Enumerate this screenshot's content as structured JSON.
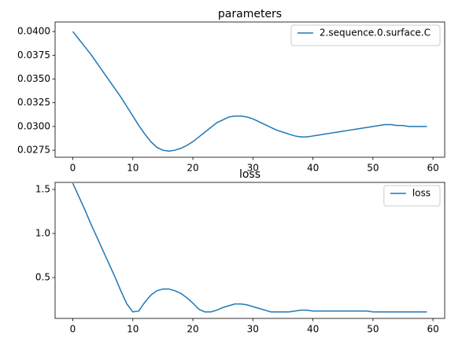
{
  "chart_data": [
    {
      "type": "line",
      "title": "parameters",
      "x": [
        0,
        1,
        2,
        3,
        4,
        5,
        6,
        7,
        8,
        9,
        10,
        11,
        12,
        13,
        14,
        15,
        16,
        17,
        18,
        19,
        20,
        21,
        22,
        23,
        24,
        25,
        26,
        27,
        28,
        29,
        30,
        31,
        32,
        33,
        34,
        35,
        36,
        37,
        38,
        39,
        40,
        41,
        42,
        43,
        44,
        45,
        46,
        47,
        48,
        49,
        50,
        51,
        52,
        53,
        54,
        55,
        56,
        57,
        58,
        59
      ],
      "series": [
        {
          "name": "2.sequence.0.surface.C",
          "color": "#1f77b4",
          "values": [
            0.04,
            0.0392,
            0.0384,
            0.0376,
            0.0367,
            0.0358,
            0.0349,
            0.034,
            0.0331,
            0.0321,
            0.0311,
            0.0301,
            0.0292,
            0.0284,
            0.0278,
            0.0275,
            0.0274,
            0.0275,
            0.0277,
            0.028,
            0.0284,
            0.0289,
            0.0294,
            0.0299,
            0.0304,
            0.0307,
            0.031,
            0.0311,
            0.0311,
            0.031,
            0.0308,
            0.0305,
            0.0302,
            0.0299,
            0.0296,
            0.0294,
            0.0292,
            0.029,
            0.0289,
            0.0289,
            0.029,
            0.0291,
            0.0292,
            0.0293,
            0.0294,
            0.0295,
            0.0296,
            0.0297,
            0.0298,
            0.0299,
            0.03,
            0.0301,
            0.0302,
            0.0302,
            0.0301,
            0.0301,
            0.03,
            0.03,
            0.03,
            0.03
          ]
        }
      ],
      "xlim": [
        -2.95,
        61.95
      ],
      "xticks": [
        0,
        10,
        20,
        30,
        40,
        50,
        60
      ],
      "ylim": [
        0.02676,
        0.041
      ],
      "yticks": [
        0.0275,
        {
          "value": 0.03,
          "label": "0.0300"
        },
        0.0325,
        {
          "value": 0.035,
          "label": "0.0350"
        },
        0.0375,
        {
          "value": 0.04,
          "label": "0.0400"
        }
      ],
      "legend": "upper right"
    },
    {
      "type": "line",
      "title": "loss",
      "x": [
        0,
        1,
        2,
        3,
        4,
        5,
        6,
        7,
        8,
        9,
        10,
        11,
        12,
        13,
        14,
        15,
        16,
        17,
        18,
        19,
        20,
        21,
        22,
        23,
        24,
        25,
        26,
        27,
        28,
        29,
        30,
        31,
        32,
        33,
        34,
        35,
        36,
        37,
        38,
        39,
        40,
        41,
        42,
        43,
        44,
        45,
        46,
        47,
        48,
        49,
        50,
        51,
        52,
        53,
        54,
        55,
        56,
        57,
        58,
        59
      ],
      "series": [
        {
          "name": "loss",
          "color": "#1f77b4",
          "values": [
            1.57,
            1.42,
            1.27,
            1.11,
            0.96,
            0.81,
            0.66,
            0.51,
            0.35,
            0.2,
            0.11,
            0.12,
            0.22,
            0.3,
            0.35,
            0.37,
            0.37,
            0.35,
            0.32,
            0.27,
            0.21,
            0.14,
            0.11,
            0.11,
            0.13,
            0.16,
            0.18,
            0.2,
            0.2,
            0.19,
            0.17,
            0.15,
            0.13,
            0.11,
            0.11,
            0.11,
            0.11,
            0.12,
            0.13,
            0.13,
            0.12,
            0.12,
            0.12,
            0.12,
            0.12,
            0.12,
            0.12,
            0.12,
            0.12,
            0.12,
            0.11,
            0.11,
            0.11,
            0.11,
            0.11,
            0.11,
            0.11,
            0.11,
            0.11,
            0.11
          ]
        }
      ],
      "xlim": [
        -2.95,
        61.95
      ],
      "xticks": [
        0,
        10,
        20,
        30,
        40,
        50,
        60
      ],
      "ylim": [
        0.036,
        1.58
      ],
      "yticks": [
        0.5,
        {
          "value": 1.0,
          "label": "1.0"
        },
        1.5
      ],
      "legend": "upper right"
    }
  ]
}
